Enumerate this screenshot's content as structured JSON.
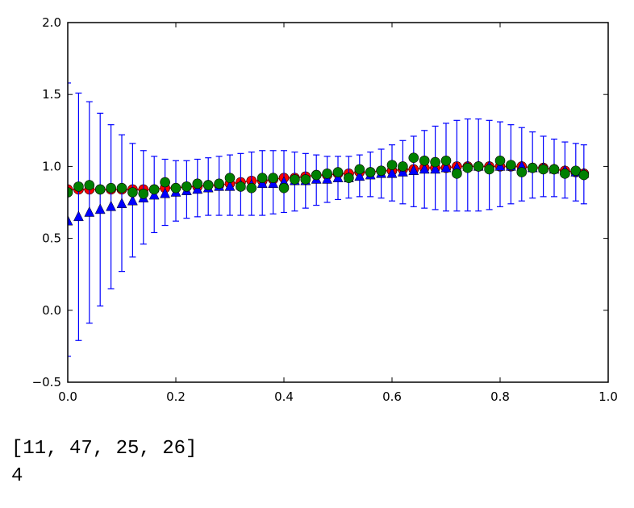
{
  "chart_data": {
    "type": "scatter",
    "xlim": [
      0.0,
      1.0
    ],
    "ylim": [
      -0.5,
      2.0
    ],
    "x_ticks": [
      "0.0",
      "0.2",
      "0.4",
      "0.6",
      "0.8",
      "1.0"
    ],
    "y_ticks": [
      "2.0",
      "1.5",
      "1.0",
      "0.5",
      "0.0",
      "−0.5"
    ],
    "grid": false,
    "series": [
      {
        "marker": "line",
        "color": "#ff0000",
        "x": [
          0.0,
          0.02,
          0.04,
          0.06,
          0.08,
          0.1,
          0.12,
          0.14,
          0.16,
          0.18,
          0.2,
          0.22,
          0.24,
          0.26,
          0.28,
          0.3,
          0.32,
          0.34,
          0.36,
          0.38,
          0.4,
          0.42,
          0.44,
          0.46,
          0.48,
          0.5,
          0.52,
          0.54,
          0.56,
          0.58,
          0.6,
          0.62,
          0.64,
          0.66,
          0.68,
          0.7,
          0.72,
          0.74,
          0.76,
          0.78,
          0.8,
          0.82,
          0.84,
          0.86,
          0.88,
          0.9,
          0.92,
          0.94,
          0.955
        ],
        "y": [
          0.84,
          0.84,
          0.84,
          0.84,
          0.84,
          0.84,
          0.84,
          0.84,
          0.84,
          0.85,
          0.85,
          0.86,
          0.86,
          0.87,
          0.87,
          0.88,
          0.89,
          0.9,
          0.9,
          0.91,
          0.92,
          0.92,
          0.93,
          0.94,
          0.94,
          0.95,
          0.95,
          0.96,
          0.96,
          0.97,
          0.97,
          0.98,
          0.98,
          0.99,
          0.99,
          0.99,
          1.0,
          1.0,
          1.0,
          1.0,
          1.0,
          1.0,
          1.0,
          0.99,
          0.99,
          0.98,
          0.97,
          0.96,
          0.95
        ]
      },
      {
        "marker": "circle",
        "color": "#ff0000",
        "x": [
          0.0,
          0.02,
          0.04,
          0.06,
          0.08,
          0.1,
          0.12,
          0.14,
          0.16,
          0.18,
          0.2,
          0.22,
          0.24,
          0.26,
          0.28,
          0.3,
          0.32,
          0.34,
          0.36,
          0.38,
          0.4,
          0.42,
          0.44,
          0.46,
          0.48,
          0.5,
          0.52,
          0.54,
          0.56,
          0.58,
          0.6,
          0.62,
          0.64,
          0.66,
          0.68,
          0.7,
          0.72,
          0.74,
          0.76,
          0.78,
          0.8,
          0.82,
          0.84,
          0.86,
          0.88,
          0.9,
          0.92,
          0.94,
          0.955
        ],
        "y": [
          0.84,
          0.84,
          0.84,
          0.84,
          0.84,
          0.84,
          0.84,
          0.84,
          0.84,
          0.85,
          0.85,
          0.86,
          0.86,
          0.87,
          0.87,
          0.88,
          0.89,
          0.9,
          0.9,
          0.91,
          0.92,
          0.92,
          0.93,
          0.94,
          0.94,
          0.95,
          0.95,
          0.96,
          0.96,
          0.97,
          0.97,
          0.98,
          0.98,
          0.99,
          0.99,
          0.99,
          1.0,
          1.0,
          1.0,
          1.0,
          1.0,
          1.0,
          1.0,
          0.99,
          0.99,
          0.98,
          0.97,
          0.96,
          0.95
        ]
      },
      {
        "marker": "triangle",
        "color": "#0000ff",
        "x": [
          0.0,
          0.02,
          0.04,
          0.06,
          0.08,
          0.1,
          0.12,
          0.14,
          0.16,
          0.18,
          0.2,
          0.22,
          0.24,
          0.26,
          0.28,
          0.3,
          0.32,
          0.34,
          0.36,
          0.38,
          0.4,
          0.42,
          0.44,
          0.46,
          0.48,
          0.5,
          0.52,
          0.54,
          0.56,
          0.58,
          0.6,
          0.62,
          0.64,
          0.66,
          0.68,
          0.7,
          0.72,
          0.74,
          0.76,
          0.78,
          0.8,
          0.82,
          0.84,
          0.86,
          0.88,
          0.9,
          0.92,
          0.94,
          0.955
        ],
        "y": [
          0.62,
          0.65,
          0.68,
          0.7,
          0.72,
          0.74,
          0.76,
          0.78,
          0.8,
          0.81,
          0.82,
          0.83,
          0.84,
          0.85,
          0.86,
          0.86,
          0.87,
          0.87,
          0.88,
          0.88,
          0.89,
          0.9,
          0.9,
          0.91,
          0.91,
          0.92,
          0.92,
          0.93,
          0.94,
          0.95,
          0.95,
          0.96,
          0.97,
          0.98,
          0.98,
          0.99,
          0.99,
          1.0,
          1.0,
          1.0,
          1.0,
          1.0,
          1.0,
          0.99,
          0.99,
          0.98,
          0.97,
          0.96,
          0.95
        ],
        "err_low": [
          -0.32,
          -0.21,
          -0.09,
          0.03,
          0.15,
          0.27,
          0.37,
          0.46,
          0.54,
          0.59,
          0.62,
          0.64,
          0.65,
          0.66,
          0.66,
          0.66,
          0.66,
          0.66,
          0.66,
          0.67,
          0.68,
          0.69,
          0.71,
          0.73,
          0.75,
          0.77,
          0.78,
          0.79,
          0.79,
          0.78,
          0.76,
          0.74,
          0.72,
          0.71,
          0.7,
          0.69,
          0.69,
          0.69,
          0.69,
          0.7,
          0.72,
          0.74,
          0.76,
          0.78,
          0.79,
          0.79,
          0.78,
          0.76,
          0.74
        ],
        "err_high": [
          1.58,
          1.51,
          1.45,
          1.37,
          1.29,
          1.22,
          1.16,
          1.11,
          1.07,
          1.05,
          1.04,
          1.04,
          1.05,
          1.06,
          1.07,
          1.08,
          1.09,
          1.1,
          1.11,
          1.11,
          1.11,
          1.1,
          1.09,
          1.08,
          1.07,
          1.07,
          1.07,
          1.08,
          1.1,
          1.12,
          1.15,
          1.18,
          1.21,
          1.25,
          1.28,
          1.3,
          1.32,
          1.33,
          1.33,
          1.32,
          1.31,
          1.29,
          1.27,
          1.24,
          1.21,
          1.19,
          1.17,
          1.16,
          1.15
        ]
      },
      {
        "marker": "circle",
        "color": "#008000",
        "x": [
          0.0,
          0.02,
          0.04,
          0.06,
          0.08,
          0.1,
          0.12,
          0.14,
          0.16,
          0.18,
          0.2,
          0.22,
          0.24,
          0.26,
          0.28,
          0.3,
          0.32,
          0.34,
          0.36,
          0.38,
          0.4,
          0.42,
          0.44,
          0.46,
          0.48,
          0.5,
          0.52,
          0.54,
          0.56,
          0.58,
          0.6,
          0.62,
          0.64,
          0.66,
          0.68,
          0.7,
          0.72,
          0.74,
          0.76,
          0.78,
          0.8,
          0.82,
          0.84,
          0.86,
          0.88,
          0.9,
          0.92,
          0.94,
          0.955
        ],
        "y": [
          0.82,
          0.86,
          0.87,
          0.84,
          0.85,
          0.85,
          0.82,
          0.81,
          0.84,
          0.89,
          0.85,
          0.86,
          0.88,
          0.87,
          0.88,
          0.92,
          0.86,
          0.85,
          0.92,
          0.92,
          0.85,
          0.91,
          0.91,
          0.94,
          0.95,
          0.96,
          0.92,
          0.98,
          0.96,
          0.97,
          1.01,
          1.0,
          1.06,
          1.04,
          1.03,
          1.04,
          0.95,
          0.99,
          1.0,
          0.98,
          1.04,
          1.01,
          0.96,
          0.99,
          0.98,
          0.98,
          0.95,
          0.97,
          0.94
        ]
      }
    ]
  },
  "output": {
    "line1": "[11, 47, 25, 26]",
    "line2": "4"
  }
}
